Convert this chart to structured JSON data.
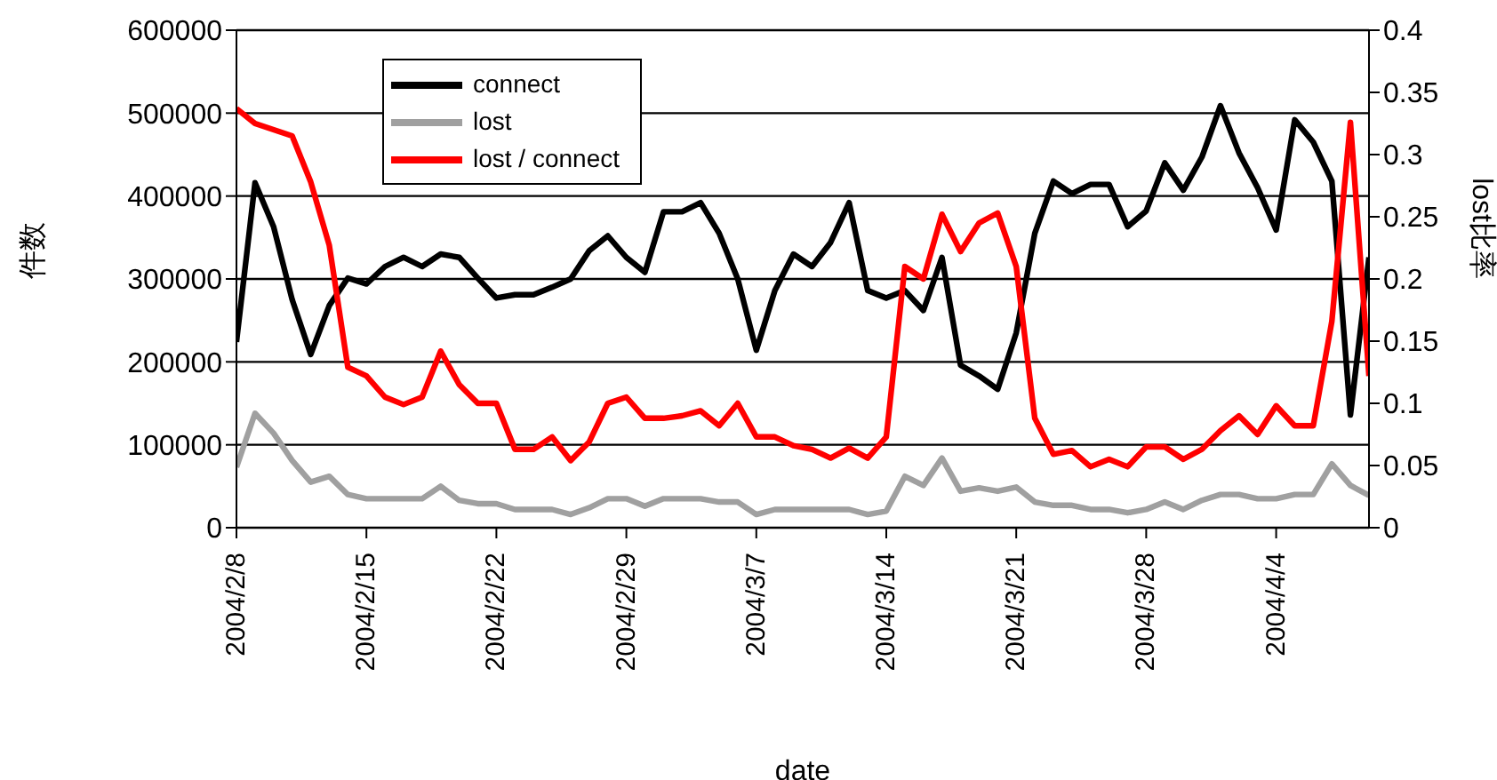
{
  "chart_data": {
    "type": "line",
    "xlabel": "date",
    "ylabel": "件数",
    "y2label": "lost比率",
    "x": [
      "2004-02-08",
      "2004-02-09",
      "2004-02-10",
      "2004-02-11",
      "2004-02-12",
      "2004-02-13",
      "2004-02-14",
      "2004-02-15",
      "2004-02-16",
      "2004-02-17",
      "2004-02-18",
      "2004-02-19",
      "2004-02-20",
      "2004-02-21",
      "2004-02-22",
      "2004-02-23",
      "2004-02-24",
      "2004-02-25",
      "2004-02-26",
      "2004-02-27",
      "2004-02-28",
      "2004-02-29",
      "2004-03-01",
      "2004-03-02",
      "2004-03-03",
      "2004-03-04",
      "2004-03-05",
      "2004-03-06",
      "2004-03-07",
      "2004-03-08",
      "2004-03-09",
      "2004-03-10",
      "2004-03-11",
      "2004-03-12",
      "2004-03-13",
      "2004-03-14",
      "2004-03-15",
      "2004-03-16",
      "2004-03-17",
      "2004-03-18",
      "2004-03-19",
      "2004-03-20",
      "2004-03-21",
      "2004-03-22",
      "2004-03-23",
      "2004-03-24",
      "2004-03-25",
      "2004-03-26",
      "2004-03-27",
      "2004-03-28",
      "2004-03-29",
      "2004-03-30",
      "2004-03-31",
      "2004-04-01",
      "2004-04-02",
      "2004-04-03",
      "2004-04-04",
      "2004-04-05",
      "2004-04-06",
      "2004-04-07",
      "2004-04-08",
      "2004-04-09"
    ],
    "series": [
      {
        "name": "connect",
        "color": "#000000",
        "values": [
          224000,
          416000,
          363000,
          275000,
          209000,
          268000,
          301000,
          294000,
          315000,
          326000,
          315000,
          330000,
          326000,
          301000,
          277000,
          281000,
          281000,
          290000,
          300000,
          334000,
          352000,
          326000,
          308000,
          381000,
          381000,
          392000,
          355000,
          300000,
          214000,
          286000,
          330000,
          315000,
          344000,
          392000,
          286000,
          277000,
          286000,
          262000,
          326000,
          196000,
          183000,
          167000,
          235000,
          355000,
          418000,
          403000,
          414000,
          414000,
          363000,
          382000,
          440000,
          407000,
          447000,
          509000,
          452000,
          410000,
          359000,
          492000,
          465000,
          418000,
          136000,
          326000
        ]
      },
      {
        "name": "lost",
        "color": "#a0a0a0",
        "values": [
          73000,
          138000,
          114000,
          81000,
          55000,
          62000,
          40000,
          35000,
          35000,
          35000,
          35000,
          50000,
          33000,
          29000,
          29000,
          22000,
          22000,
          22000,
          16000,
          24000,
          35000,
          35000,
          26000,
          35000,
          35000,
          35000,
          31000,
          31000,
          16000,
          22000,
          22000,
          22000,
          22000,
          22000,
          16000,
          20000,
          62000,
          51000,
          84000,
          44000,
          48000,
          44000,
          49000,
          31000,
          27000,
          27000,
          22000,
          22000,
          18000,
          22000,
          31000,
          22000,
          33000,
          40000,
          40000,
          35000,
          35000,
          40000,
          40000,
          77000,
          51000,
          39000
        ]
      },
      {
        "name": "lost / connect",
        "color": "#ff0000",
        "axis": "y2",
        "values": [
          0.337,
          0.325,
          0.32,
          0.315,
          0.278,
          0.227,
          0.129,
          0.122,
          0.105,
          0.099,
          0.105,
          0.142,
          0.115,
          0.1,
          0.1,
          0.063,
          0.063,
          0.073,
          0.054,
          0.069,
          0.1,
          0.105,
          0.088,
          0.088,
          0.09,
          0.094,
          0.082,
          0.1,
          0.073,
          0.073,
          0.066,
          0.063,
          0.056,
          0.064,
          0.056,
          0.073,
          0.21,
          0.2,
          0.252,
          0.222,
          0.245,
          0.253,
          0.21,
          0.088,
          0.059,
          0.062,
          0.049,
          0.055,
          0.049,
          0.065,
          0.065,
          0.055,
          0.063,
          0.078,
          0.09,
          0.075,
          0.098,
          0.082,
          0.082,
          0.166,
          0.326,
          0.122
        ]
      }
    ],
    "xlim": [
      "2004-02-08",
      "2004-04-09"
    ],
    "xticks": [
      {
        "value": "2004-02-08",
        "label": "2004/2/8"
      },
      {
        "value": "2004-02-15",
        "label": "2004/2/15"
      },
      {
        "value": "2004-02-22",
        "label": "2004/2/22"
      },
      {
        "value": "2004-02-29",
        "label": "2004/2/29"
      },
      {
        "value": "2004-03-07",
        "label": "2004/3/7"
      },
      {
        "value": "2004-03-14",
        "label": "2004/3/14"
      },
      {
        "value": "2004-03-21",
        "label": "2004/3/21"
      },
      {
        "value": "2004-03-28",
        "label": "2004/3/28"
      },
      {
        "value": "2004-04-04",
        "label": "2004/4/4"
      }
    ],
    "ylim": [
      0,
      600000
    ],
    "yticks": [
      0,
      100000,
      200000,
      300000,
      400000,
      500000,
      600000
    ],
    "y2lim": [
      0,
      0.4
    ],
    "y2ticks": [
      0,
      0.05,
      0.1,
      0.15,
      0.2,
      0.25,
      0.3,
      0.35,
      0.4
    ],
    "grid": "y",
    "legend": "top left",
    "marker": "none",
    "line_style": "solid"
  }
}
